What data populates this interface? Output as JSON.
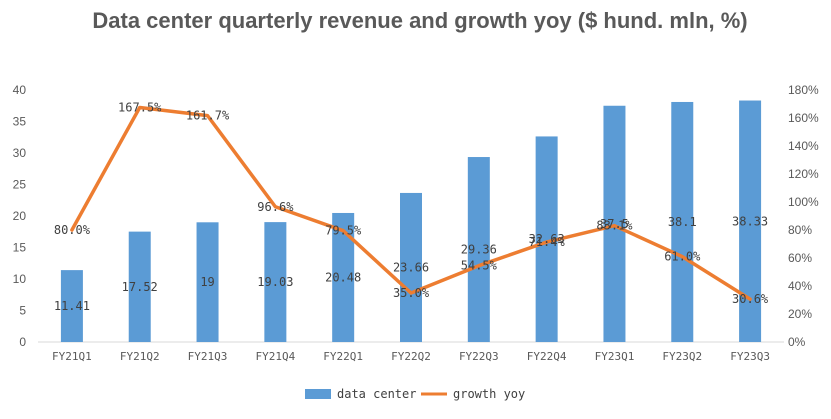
{
  "chart_data": {
    "type": "bar+line",
    "title": "Data center quarterly revenue and growth yoy ($ hund. mln, %)",
    "categories": [
      "FY21Q1",
      "FY21Q2",
      "FY21Q3",
      "FY21Q4",
      "FY22Q1",
      "FY22Q2",
      "FY22Q3",
      "FY22Q4",
      "FY23Q1",
      "FY23Q2",
      "FY23Q3"
    ],
    "series": [
      {
        "name": "data center",
        "type": "bar",
        "axis": "left",
        "color": "#5B9BD5",
        "values": [
          11.41,
          17.52,
          19,
          19.03,
          20.48,
          23.66,
          29.36,
          32.63,
          37.5,
          38.1,
          38.33
        ],
        "labels": [
          "11.41",
          "17.52",
          "19",
          "19.03",
          "20.48",
          "23.66",
          "29.36",
          "32.63",
          "37.5",
          "38.1",
          "38.33"
        ]
      },
      {
        "name": "growth yoy",
        "type": "line",
        "axis": "right",
        "color": "#ED7D31",
        "values": [
          80.0,
          167.5,
          161.7,
          96.6,
          79.5,
          35.0,
          54.5,
          71.4,
          83.1,
          61.0,
          30.6
        ],
        "labels": [
          "80.0%",
          "167.5%",
          "161.7%",
          "96.6%",
          "79.5%",
          "35.0%",
          "54.5%",
          "71.4%",
          "83.1%",
          "61.0%",
          "30.6%"
        ]
      }
    ],
    "y_left": {
      "min": 0,
      "max": 40,
      "step": 5,
      "ticks": [
        "0",
        "5",
        "10",
        "15",
        "20",
        "25",
        "30",
        "35",
        "40"
      ]
    },
    "y_right": {
      "min": 0,
      "max": 180,
      "step": 20,
      "ticks": [
        "0%",
        "20%",
        "40%",
        "60%",
        "80%",
        "100%",
        "120%",
        "140%",
        "160%",
        "180%"
      ]
    },
    "grid": false,
    "legend": {
      "position": "bottom",
      "items": [
        "data center",
        "growth yoy"
      ]
    }
  }
}
